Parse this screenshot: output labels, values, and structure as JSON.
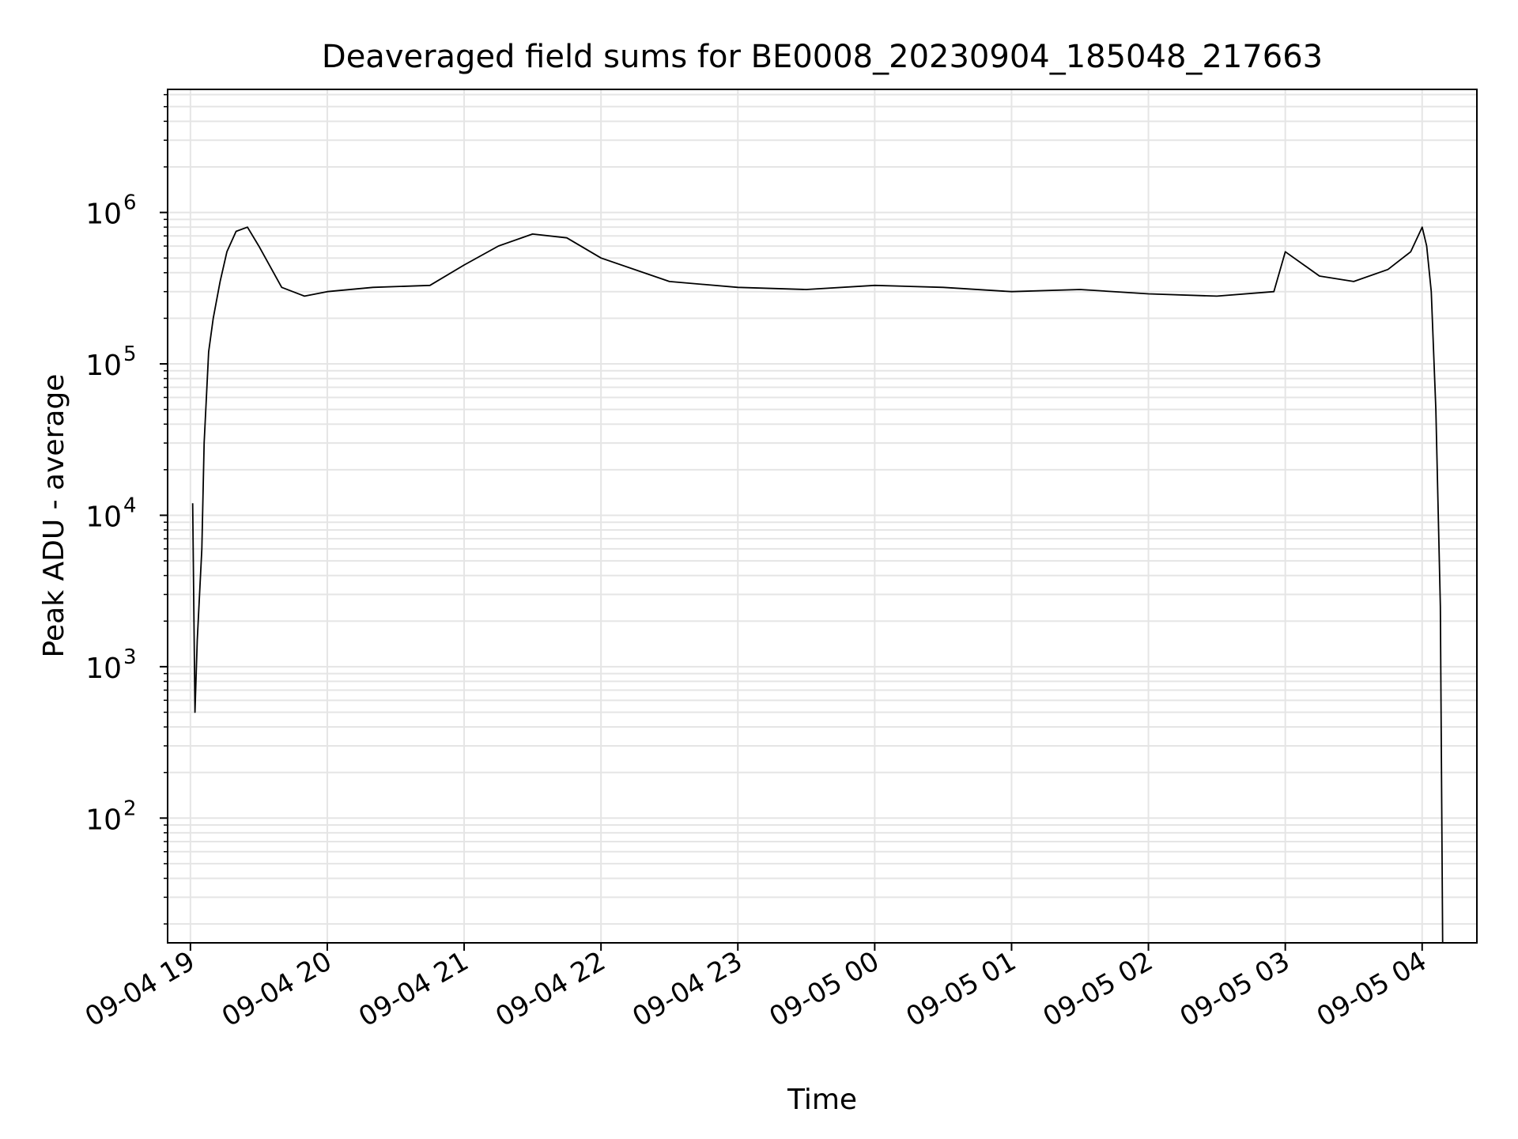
{
  "chart_data": {
    "type": "line",
    "title": "Deaveraged field sums for BE0008_20230904_185048_217663",
    "xlabel": "Time",
    "ylabel": "Peak ADU - average",
    "yscale": "log",
    "ylim": [
      15,
      6500000
    ],
    "xlim": [
      "2023-09-04 18:50",
      "2023-09-05 04:24"
    ],
    "x_ticks": [
      "09-04 19",
      "09-04 20",
      "09-04 21",
      "09-04 22",
      "09-04 23",
      "09-05 00",
      "09-05 01",
      "09-05 02",
      "09-05 03",
      "09-05 04"
    ],
    "y_ticks": [
      {
        "base": "10",
        "exp": "2",
        "value": 100
      },
      {
        "base": "10",
        "exp": "3",
        "value": 1000
      },
      {
        "base": "10",
        "exp": "4",
        "value": 10000
      },
      {
        "base": "10",
        "exp": "5",
        "value": 100000
      },
      {
        "base": "10",
        "exp": "6",
        "value": 1000000
      }
    ],
    "grid": true,
    "line_color": "#000000",
    "grid_color": "#e5e5e5",
    "series": [
      {
        "x": [
          "2023-09-04 19:01",
          "2023-09-04 19:02",
          "2023-09-04 19:03",
          "2023-09-04 19:04",
          "2023-09-04 19:05",
          "2023-09-04 19:06",
          "2023-09-04 19:08",
          "2023-09-04 19:10",
          "2023-09-04 19:13",
          "2023-09-04 19:16",
          "2023-09-04 19:20",
          "2023-09-04 19:25",
          "2023-09-04 19:30",
          "2023-09-04 19:40",
          "2023-09-04 19:50",
          "2023-09-04 20:00",
          "2023-09-04 20:20",
          "2023-09-04 20:45",
          "2023-09-04 21:00",
          "2023-09-04 21:15",
          "2023-09-04 21:30",
          "2023-09-04 21:45",
          "2023-09-04 22:00",
          "2023-09-04 22:30",
          "2023-09-04 23:00",
          "2023-09-04 23:30",
          "2023-09-05 00:00",
          "2023-09-05 00:30",
          "2023-09-05 01:00",
          "2023-09-05 01:30",
          "2023-09-05 02:00",
          "2023-09-05 02:30",
          "2023-09-05 02:55",
          "2023-09-05 03:00",
          "2023-09-05 03:15",
          "2023-09-05 03:30",
          "2023-09-05 03:45",
          "2023-09-05 03:55",
          "2023-09-05 04:00",
          "2023-09-05 04:02",
          "2023-09-05 04:04",
          "2023-09-05 04:06",
          "2023-09-05 04:08",
          "2023-09-05 04:09"
        ],
        "y": [
          12000,
          500,
          1500,
          3000,
          6000,
          30000,
          120000,
          200000,
          350000,
          550000,
          750000,
          800000,
          600000,
          320000,
          280000,
          300000,
          320000,
          330000,
          450000,
          600000,
          720000,
          680000,
          500000,
          350000,
          320000,
          310000,
          330000,
          320000,
          300000,
          310000,
          290000,
          280000,
          300000,
          550000,
          380000,
          350000,
          420000,
          550000,
          800000,
          600000,
          300000,
          50000,
          2500,
          15
        ]
      }
    ]
  }
}
